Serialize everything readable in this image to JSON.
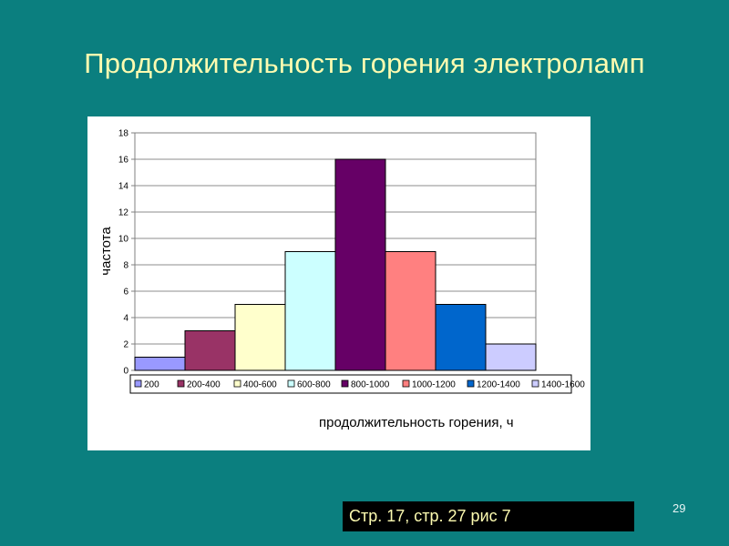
{
  "slide": {
    "title": "Продолжительность горения электроламп",
    "page_number": "29",
    "footer": "Стр. 17, стр. 27 рис 7"
  },
  "chart_data": {
    "type": "bar",
    "categories": [
      "200",
      "200-400",
      "400-600",
      "600-800",
      "800-1000",
      "1000-1200",
      "1200-1400",
      "1400-1600"
    ],
    "values": [
      1,
      3,
      5,
      9,
      16,
      9,
      5,
      2
    ],
    "colors": [
      "#9999ff",
      "#993366",
      "#ffffcc",
      "#ccffff",
      "#660066",
      "#ff8080",
      "#0066cc",
      "#ccccff"
    ],
    "xlabel": "продолжительность горения, ч",
    "ylabel": "частота",
    "ylim": [
      0,
      18
    ],
    "yticks": [
      0,
      2,
      4,
      6,
      8,
      10,
      12,
      14,
      16,
      18
    ],
    "grid": true,
    "legend": "bottom"
  }
}
